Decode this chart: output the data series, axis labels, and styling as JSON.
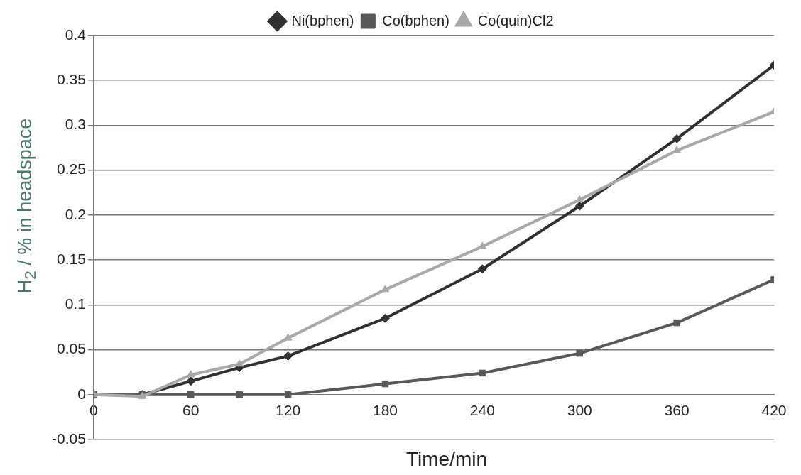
{
  "chart_data": {
    "type": "line",
    "xlabel": "Time/min",
    "ylabel": "H$_{2}$ / % in headspace",
    "x": [
      0,
      30,
      60,
      90,
      120,
      180,
      240,
      300,
      360,
      420
    ],
    "series": [
      {
        "name": "Ni(bphen)",
        "color": "#303030",
        "marker": "diamond",
        "values": [
          0,
          0,
          0.015,
          0.03,
          0.043,
          0.085,
          0.14,
          0.21,
          0.285,
          0.367
        ]
      },
      {
        "name": "Co(bphen)",
        "color": "#585858",
        "marker": "square",
        "values": [
          0,
          0,
          0,
          0,
          0,
          0.012,
          0.024,
          0.046,
          0.08,
          0.128
        ]
      },
      {
        "name": "Co(quin)Cl2",
        "color": "#a8a8a8",
        "marker": "triangle",
        "values": [
          0,
          -0.002,
          0.022,
          0.034,
          0.063,
          0.117,
          0.165,
          0.217,
          0.272,
          0.315
        ]
      }
    ],
    "xlim": [
      0,
      420
    ],
    "xticks": [
      0,
      60,
      120,
      180,
      240,
      300,
      360,
      420
    ],
    "ylim": [
      -0.05,
      0.4
    ],
    "yticks": [
      -0.05,
      0,
      0.05,
      0.1,
      0.15,
      0.2,
      0.25,
      0.3,
      0.35,
      0.4
    ],
    "grid": "y",
    "legend": "top"
  }
}
